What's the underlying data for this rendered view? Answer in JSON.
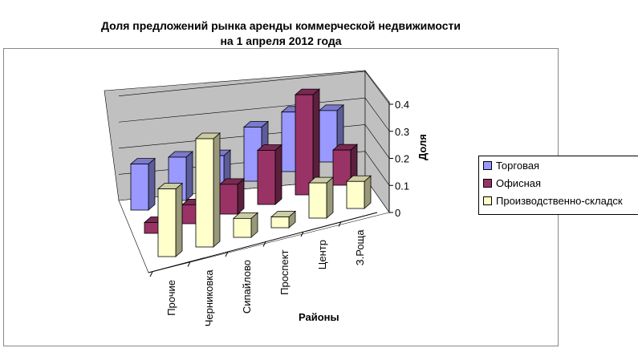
{
  "chart_data": {
    "type": "bar",
    "subtype": "3d-clustered-column",
    "title": [
      "Доля предложений рынка аренды коммерческой недвижимости",
      "на 1 апреля 2012 года"
    ],
    "xlabel": "Районы",
    "ylabel": "Доля",
    "categories": [
      "Прочие",
      "Черниковка",
      "Сипайлово",
      "Проспект",
      "Центр",
      "З.Роща"
    ],
    "ylim": [
      0,
      0.4
    ],
    "yticks": [
      "0",
      "0.1",
      "0.2",
      "0.3",
      "0.4"
    ],
    "grid": true,
    "legend": "right",
    "series": [
      {
        "name": "Торговая",
        "color": "#9999ff",
        "values": [
          0.17,
          0.16,
          0.13,
          0.2,
          0.22,
          0.19
        ]
      },
      {
        "name": "Офисная",
        "color": "#993366",
        "values": [
          0.04,
          0.07,
          0.11,
          0.2,
          0.37,
          0.13
        ]
      },
      {
        "name": "Производственно-складск",
        "color": "#ffffcc",
        "values": [
          0.25,
          0.4,
          0.07,
          0.04,
          0.13,
          0.1
        ]
      }
    ]
  }
}
